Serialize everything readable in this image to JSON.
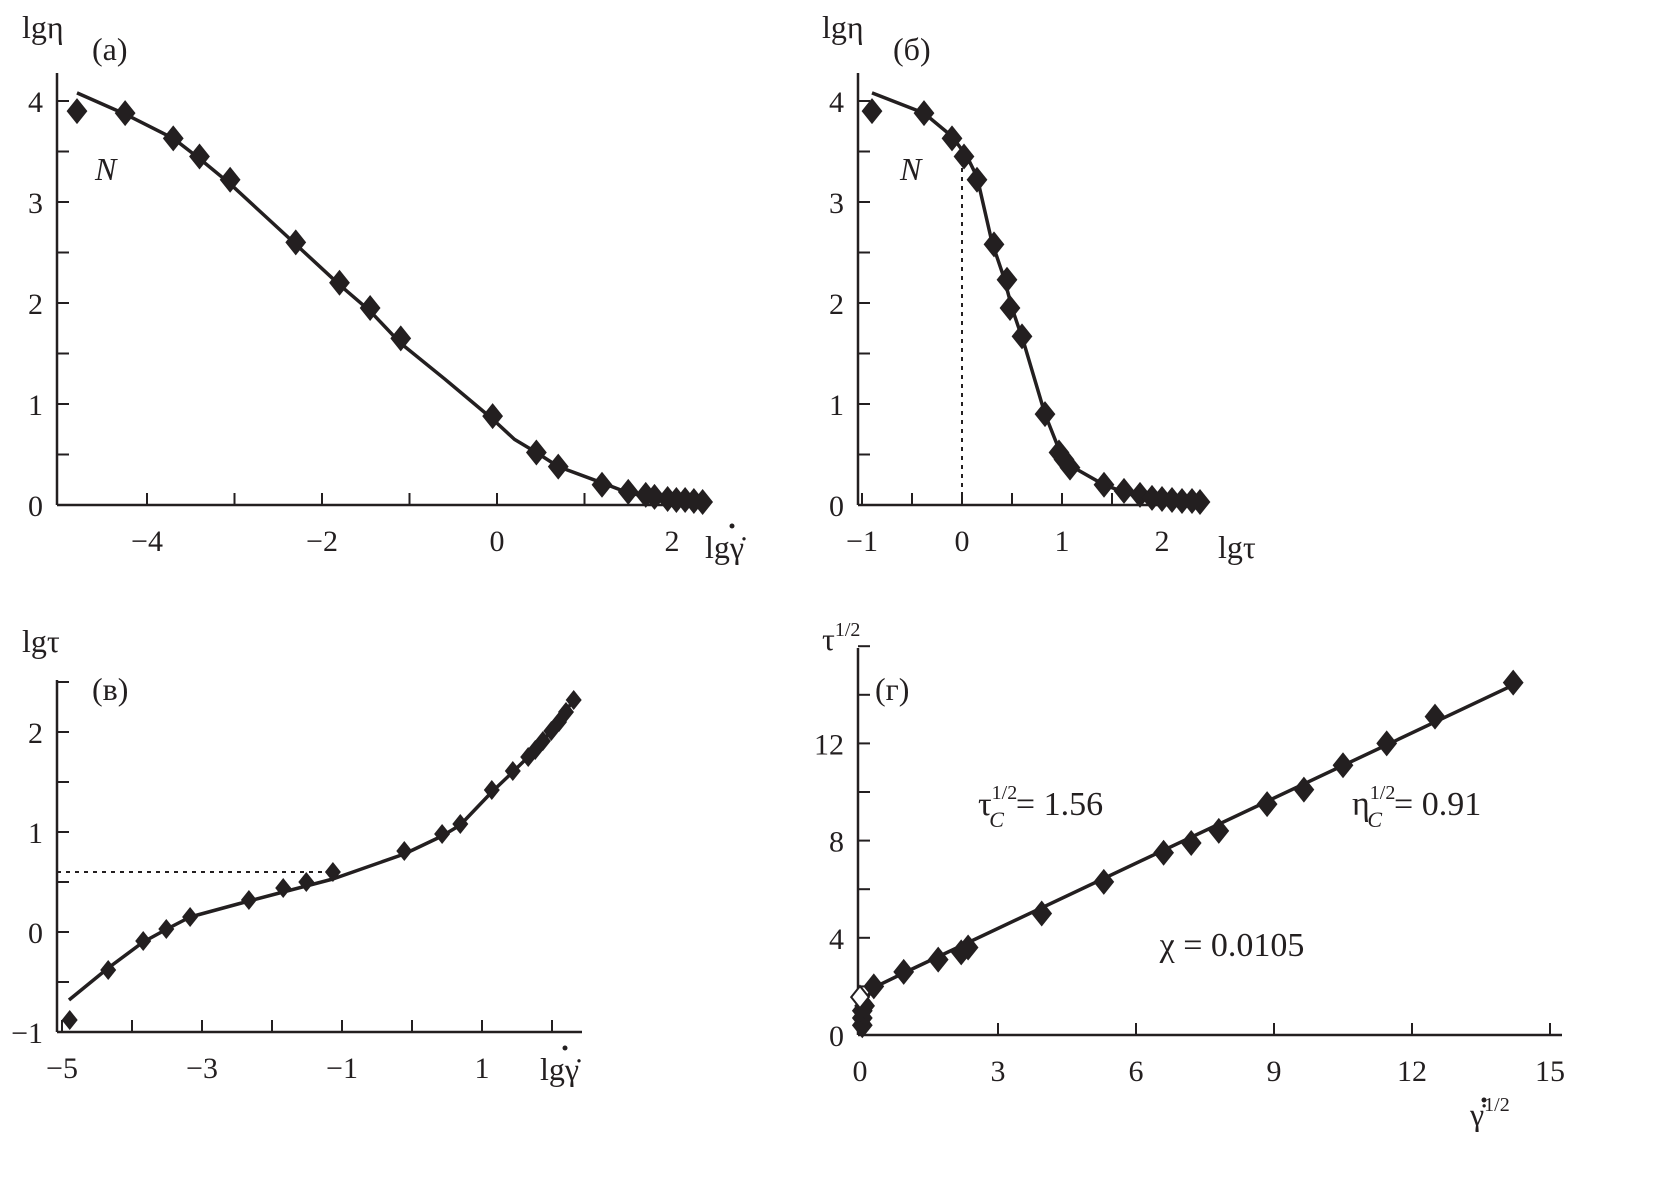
{
  "chart_data": [
    {
      "id": "a",
      "type": "line",
      "panel_label": "(a)",
      "xlabel": "lgγ̇",
      "ylabel": "lgη",
      "annotation": "N",
      "xlim": [
        -4.95,
        2.45
      ],
      "ylim": [
        0,
        4.35
      ],
      "xticks": [
        -4,
        -2,
        0,
        2
      ],
      "yticks": [
        0,
        1,
        2,
        3,
        4
      ],
      "points": [
        [
          -4.8,
          3.9
        ],
        [
          -4.25,
          3.88
        ],
        [
          -3.7,
          3.63
        ],
        [
          -3.4,
          3.45
        ],
        [
          -3.05,
          3.22
        ],
        [
          -2.3,
          2.6
        ],
        [
          -1.8,
          2.2
        ],
        [
          -1.45,
          1.95
        ],
        [
          -1.1,
          1.65
        ],
        [
          -0.05,
          0.88
        ],
        [
          0.45,
          0.52
        ],
        [
          0.7,
          0.38
        ],
        [
          1.2,
          0.2
        ],
        [
          1.5,
          0.13
        ],
        [
          1.7,
          0.1
        ],
        [
          1.8,
          0.08
        ],
        [
          1.95,
          0.06
        ],
        [
          2.05,
          0.05
        ],
        [
          2.15,
          0.05
        ],
        [
          2.25,
          0.04
        ],
        [
          2.35,
          0.03
        ]
      ],
      "curve": [
        [
          -4.8,
          4.08
        ],
        [
          -4.25,
          3.87
        ],
        [
          -3.7,
          3.63
        ],
        [
          -3.4,
          3.43
        ],
        [
          -3.05,
          3.18
        ],
        [
          -2.7,
          2.9
        ],
        [
          -2.3,
          2.58
        ],
        [
          -1.8,
          2.18
        ],
        [
          -1.45,
          1.92
        ],
        [
          -1.1,
          1.6
        ],
        [
          -0.6,
          1.25
        ],
        [
          -0.05,
          0.85
        ],
        [
          0.2,
          0.65
        ],
        [
          0.45,
          0.52
        ],
        [
          0.7,
          0.38
        ],
        [
          1.2,
          0.22
        ],
        [
          1.5,
          0.12
        ],
        [
          1.8,
          0.07
        ],
        [
          2.4,
          0.03
        ]
      ]
    },
    {
      "id": "b",
      "type": "line",
      "panel_label": "(б)",
      "xlabel": "lgτ",
      "ylabel": "lgη",
      "annotation": "N",
      "xlim": [
        -1.05,
        2.45
      ],
      "ylim": [
        0,
        4.35
      ],
      "xticks": [
        -1,
        0,
        1,
        2
      ],
      "yticks": [
        0,
        1,
        2,
        3,
        4
      ],
      "reference_x": 0,
      "points": [
        [
          -0.9,
          3.9
        ],
        [
          -0.38,
          3.88
        ],
        [
          -0.1,
          3.63
        ],
        [
          0.02,
          3.45
        ],
        [
          0.15,
          3.22
        ],
        [
          0.32,
          2.58
        ],
        [
          0.45,
          2.23
        ],
        [
          0.48,
          1.95
        ],
        [
          0.6,
          1.67
        ],
        [
          0.83,
          0.9
        ],
        [
          0.97,
          0.52
        ],
        [
          1.02,
          0.45
        ],
        [
          1.08,
          0.37
        ],
        [
          1.42,
          0.2
        ],
        [
          1.62,
          0.14
        ],
        [
          1.78,
          0.1
        ],
        [
          1.9,
          0.07
        ],
        [
          2.0,
          0.06
        ],
        [
          2.1,
          0.05
        ],
        [
          2.2,
          0.04
        ],
        [
          2.3,
          0.04
        ],
        [
          2.38,
          0.03
        ]
      ],
      "curve": [
        [
          -0.9,
          4.08
        ],
        [
          -0.38,
          3.88
        ],
        [
          -0.1,
          3.65
        ],
        [
          0.05,
          3.45
        ],
        [
          0.15,
          3.25
        ],
        [
          0.3,
          2.6
        ],
        [
          0.42,
          2.25
        ],
        [
          0.5,
          1.95
        ],
        [
          0.62,
          1.6
        ],
        [
          0.83,
          0.9
        ],
        [
          0.97,
          0.55
        ],
        [
          1.1,
          0.38
        ],
        [
          1.42,
          0.2
        ],
        [
          1.7,
          0.1
        ],
        [
          2.0,
          0.06
        ],
        [
          2.4,
          0.03
        ]
      ]
    },
    {
      "id": "v",
      "type": "line",
      "panel_label": "(в)",
      "xlabel": "lgγ̇",
      "ylabel": "lgτ",
      "xlim": [
        -5.07,
        2.4
      ],
      "ylim": [
        -1,
        2.5
      ],
      "xticks": [
        -5,
        -3,
        -1,
        1
      ],
      "yticks": [
        -1,
        0,
        1,
        2
      ],
      "reference_y": 0.6,
      "points": [
        [
          -4.89,
          -0.88
        ],
        [
          -4.34,
          -0.38
        ],
        [
          -3.84,
          -0.09
        ],
        [
          -3.51,
          0.03
        ],
        [
          -3.17,
          0.15
        ],
        [
          -2.33,
          0.32
        ],
        [
          -1.84,
          0.44
        ],
        [
          -1.51,
          0.5
        ],
        [
          -1.13,
          0.6
        ],
        [
          -0.11,
          0.81
        ],
        [
          0.43,
          0.98
        ],
        [
          0.69,
          1.08
        ],
        [
          1.14,
          1.42
        ],
        [
          1.44,
          1.61
        ],
        [
          1.66,
          1.75
        ],
        [
          1.76,
          1.82
        ],
        [
          1.87,
          1.91
        ],
        [
          1.99,
          2.01
        ],
        [
          2.1,
          2.1
        ],
        [
          2.2,
          2.2
        ],
        [
          2.31,
          2.32
        ]
      ],
      "curve": [
        [
          -4.9,
          -0.68
        ],
        [
          -4.34,
          -0.36
        ],
        [
          -3.84,
          -0.1
        ],
        [
          -3.5,
          0.03
        ],
        [
          -3.17,
          0.15
        ],
        [
          -2.33,
          0.31
        ],
        [
          -1.84,
          0.4
        ],
        [
          -1.51,
          0.46
        ],
        [
          -1.13,
          0.53
        ],
        [
          -0.11,
          0.78
        ],
        [
          0.43,
          0.96
        ],
        [
          0.69,
          1.07
        ],
        [
          1.14,
          1.4
        ],
        [
          1.44,
          1.6
        ],
        [
          1.76,
          1.82
        ],
        [
          2.0,
          2.02
        ],
        [
          2.31,
          2.32
        ]
      ]
    },
    {
      "id": "g",
      "type": "scatter",
      "panel_label": "(г)",
      "xlabel": "γ̇",
      "xlabel_sup": "1/2",
      "ylabel": "τ",
      "ylabel_sup": "1/2",
      "xlim": [
        0,
        15.2
      ],
      "ylim": [
        0,
        16
      ],
      "xticks": [
        0,
        3,
        6,
        9,
        12,
        15
      ],
      "yticks": [
        0,
        4,
        8,
        12
      ],
      "annotations": {
        "tau_c": {
          "base": "τ",
          "sub": "C",
          "sup": "1/2",
          "value": "= 1.56"
        },
        "eta_c": {
          "base": "η",
          "sub": "C",
          "sup": "1/2",
          "value": "= 0.91"
        },
        "chi": "χ = 0.0105"
      },
      "hollow_point": [
        0,
        1.56
      ],
      "points": [
        [
          0.05,
          0.4
        ],
        [
          0.05,
          0.7
        ],
        [
          0.05,
          1.0
        ],
        [
          0.1,
          1.2
        ],
        [
          0.3,
          2.0
        ],
        [
          0.95,
          2.6
        ],
        [
          1.7,
          3.1
        ],
        [
          2.2,
          3.4
        ],
        [
          2.35,
          3.6
        ],
        [
          3.95,
          5.0
        ],
        [
          5.3,
          6.3
        ],
        [
          6.6,
          7.5
        ],
        [
          7.2,
          7.9
        ],
        [
          7.8,
          8.4
        ],
        [
          8.85,
          9.5
        ],
        [
          9.65,
          10.1
        ],
        [
          10.5,
          11.1
        ],
        [
          11.45,
          12.0
        ],
        [
          12.5,
          13.1
        ],
        [
          14.2,
          14.5
        ]
      ],
      "curve": [
        [
          0,
          0
        ],
        [
          0.03,
          0.8
        ],
        [
          0.1,
          1.4
        ],
        [
          0.3,
          1.95
        ],
        [
          0.95,
          2.55
        ],
        [
          14.2,
          14.4
        ]
      ]
    }
  ]
}
